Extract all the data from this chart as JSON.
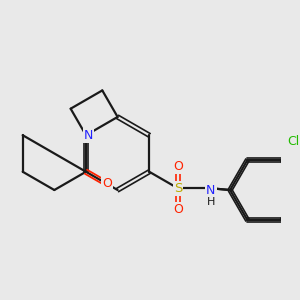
{
  "background_color": "#e9e9e9",
  "bond_color": "#1a1a1a",
  "bond_width": 1.6,
  "atom_colors": {
    "N": "#2222ff",
    "O": "#ff2200",
    "S": "#bbaa00",
    "Cl": "#22bb00",
    "NH": "#2222ff",
    "C": "#1a1a1a"
  },
  "figsize": [
    3.0,
    3.0
  ],
  "dpi": 100,
  "scale": 1.0
}
